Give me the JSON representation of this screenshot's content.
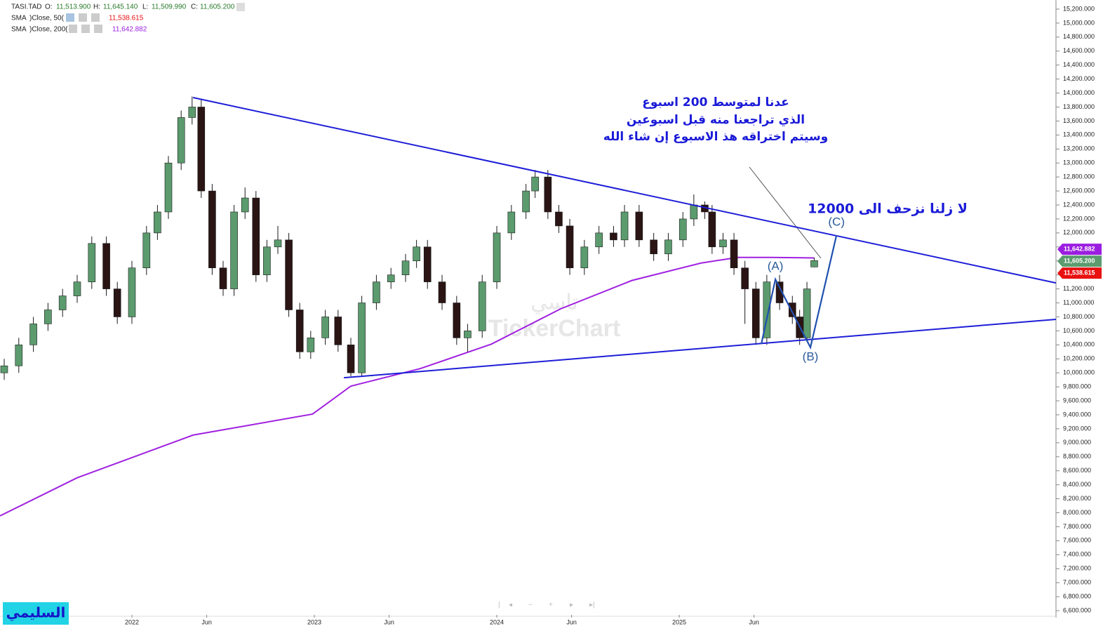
{
  "header": {
    "symbol": "TASI.TAD",
    "open_label": "O:",
    "open": "11,513.900",
    "high_label": "H:",
    "high": "11,645.140",
    "low_label": "L:",
    "low": "11,509.990",
    "close_label": "C:",
    "close": "11,605.200",
    "sma50_name": "SMA",
    "sma50_params": ")Close, 50(",
    "sma50_value": "11,538.615",
    "sma200_name": "SMA",
    "sma200_params": ")Close, 200(",
    "sma200_value": "11,642.882"
  },
  "annotations": {
    "note_line1": "عدنا لمتوسط 200 اسبوع",
    "note_line2": "الذي تراجعنا منه قبل اسبوعين",
    "note_line3": "وسيتم اختراقه هذ الاسبوع إن شاء الله",
    "target": "لا زلنا نزحف الى  12000",
    "watermark_ar": "تاسي",
    "watermark_en": "TickerChart",
    "author": "السليمي"
  },
  "chart_data": {
    "type": "candlestick",
    "xlim": [
      2021.277,
      2027.065
    ],
    "xticks": [
      {
        "value": 2022,
        "label": "2022"
      },
      {
        "value": 2022.41,
        "label": "Jun"
      },
      {
        "value": 2023,
        "label": "2023"
      },
      {
        "value": 2023.41,
        "label": "Jun"
      },
      {
        "value": 2024,
        "label": "2024"
      },
      {
        "value": 2024.41,
        "label": "Jun"
      },
      {
        "value": 2025,
        "label": "2025"
      },
      {
        "value": 2025.41,
        "label": "Jun"
      }
    ],
    "ylim": [
      6500,
      15330
    ],
    "yticks": [
      {
        "value": 6600,
        "label": "6,600.000"
      },
      {
        "value": 6800,
        "label": "6,800.000"
      },
      {
        "value": 7000,
        "label": "7,000.000"
      },
      {
        "value": 7200,
        "label": "7,200.000"
      },
      {
        "value": 7400,
        "label": "7,400.000"
      },
      {
        "value": 7600,
        "label": "7,600.000"
      },
      {
        "value": 7800,
        "label": "7,800.000"
      },
      {
        "value": 8000,
        "label": "8,000.000"
      },
      {
        "value": 8200,
        "label": "8,200.000"
      },
      {
        "value": 8400,
        "label": "8,400.000"
      },
      {
        "value": 8600,
        "label": "8,600.000"
      },
      {
        "value": 8800,
        "label": "8,800.000"
      },
      {
        "value": 9000,
        "label": "9,000.000"
      },
      {
        "value": 9200,
        "label": "9,200.000"
      },
      {
        "value": 9400,
        "label": "9,400.000"
      },
      {
        "value": 9600,
        "label": "9,600.000"
      },
      {
        "value": 9800,
        "label": "9,800.000"
      },
      {
        "value": 10000,
        "label": "10,000.000"
      },
      {
        "value": 10200,
        "label": "10,200.000"
      },
      {
        "value": 10400,
        "label": "10,400.000"
      },
      {
        "value": 10600,
        "label": "10,600.000"
      },
      {
        "value": 10800,
        "label": "10,800.000"
      },
      {
        "value": 11000,
        "label": "11,000.000"
      },
      {
        "value": 11200,
        "label": "11,200.000"
      },
      {
        "value": 11400,
        "label": "11,400.000"
      },
      {
        "value": 11600,
        "label": "11,600.000"
      },
      {
        "value": 11800,
        "label": "11,800.000"
      },
      {
        "value": 12000,
        "label": "12,000.000"
      },
      {
        "value": 12200,
        "label": "12,200.000"
      },
      {
        "value": 12400,
        "label": "12,400.000"
      },
      {
        "value": 12600,
        "label": "12,600.000"
      },
      {
        "value": 12800,
        "label": "12,800.000"
      },
      {
        "value": 13000,
        "label": "13,000.000"
      },
      {
        "value": 13200,
        "label": "13,200.000"
      },
      {
        "value": 13400,
        "label": "13,400.000"
      },
      {
        "value": 13600,
        "label": "13,600.000"
      },
      {
        "value": 13800,
        "label": "13,800.000"
      },
      {
        "value": 14000,
        "label": "14,000.000"
      },
      {
        "value": 14200,
        "label": "14,200.000"
      },
      {
        "value": 14400,
        "label": "14,400.000"
      },
      {
        "value": 14600,
        "label": "14,600.000"
      },
      {
        "value": 14800,
        "label": "14,800.000"
      },
      {
        "value": 15000,
        "label": "15,000.000"
      },
      {
        "value": 15200,
        "label": "15,200.000"
      }
    ],
    "up_color": "#5b9b6e",
    "down_color": "#2a1414",
    "x": [
      2021.3,
      2021.38,
      2021.46,
      2021.54,
      2021.62,
      2021.7,
      2021.78,
      2021.86,
      2021.92,
      2022.0,
      2022.08,
      2022.14,
      2022.2,
      2022.27,
      2022.33,
      2022.38,
      2022.44,
      2022.5,
      2022.56,
      2022.62,
      2022.68,
      2022.74,
      2022.8,
      2022.86,
      2022.92,
      2022.98,
      2023.06,
      2023.13,
      2023.2,
      2023.26,
      2023.34,
      2023.42,
      2023.5,
      2023.56,
      2023.62,
      2023.7,
      2023.78,
      2023.84,
      2023.92,
      2024.0,
      2024.08,
      2024.16,
      2024.21,
      2024.28,
      2024.34,
      2024.4,
      2024.48,
      2024.56,
      2024.64,
      2024.7,
      2024.78,
      2024.86,
      2024.94,
      2025.02,
      2025.08,
      2025.14,
      2025.18,
      2025.24,
      2025.3,
      2025.36,
      2025.42,
      2025.48,
      2025.55,
      2025.62,
      2025.66,
      2025.7,
      2025.74
    ],
    "open": [
      10000,
      10100,
      10400,
      10700,
      10900,
      11100,
      11300,
      11850,
      11200,
      10800,
      11500,
      12000,
      12300,
      13000,
      13650,
      13800,
      12600,
      11500,
      11200,
      12300,
      12500,
      11400,
      11800,
      11900,
      10900,
      10300,
      10500,
      10800,
      10400,
      10000,
      11000,
      11300,
      11400,
      11600,
      11800,
      11300,
      11000,
      10500,
      10600,
      11300,
      12000,
      12300,
      12600,
      12800,
      12300,
      12100,
      11500,
      11800,
      12000,
      11900,
      12300,
      11900,
      11700,
      11900,
      12200,
      12400,
      12300,
      11800,
      11900,
      11500,
      11200,
      10500,
      11300,
      11000,
      10800,
      10500,
      11513.9
    ],
    "high": [
      10200,
      10500,
      10800,
      11000,
      11200,
      11400,
      11950,
      11950,
      11300,
      11600,
      12100,
      12400,
      13100,
      13750,
      13950,
      13900,
      12700,
      11600,
      12400,
      12650,
      12600,
      11900,
      12100,
      12000,
      11000,
      10600,
      10900,
      10900,
      10500,
      11100,
      11400,
      11500,
      11700,
      11900,
      11900,
      11400,
      11100,
      10700,
      11400,
      12100,
      12400,
      12700,
      12900,
      12900,
      12400,
      12200,
      11900,
      12100,
      12100,
      12400,
      12400,
      12000,
      12000,
      12300,
      12550,
      12450,
      12400,
      12000,
      12000,
      11600,
      11300,
      11400,
      11400,
      11100,
      10900,
      11300,
      11645.14
    ],
    "low": [
      9900,
      10000,
      10300,
      10600,
      10800,
      11000,
      11200,
      11100,
      10700,
      10700,
      11400,
      11900,
      12200,
      12900,
      13550,
      12500,
      11400,
      11100,
      11100,
      12200,
      11300,
      11300,
      11700,
      10800,
      10200,
      10200,
      10400,
      10300,
      9950,
      9950,
      10900,
      11200,
      11300,
      11500,
      11200,
      10900,
      10400,
      10300,
      10500,
      11200,
      11900,
      12200,
      12500,
      12200,
      12000,
      11400,
      11400,
      11700,
      11800,
      11800,
      11800,
      11600,
      11600,
      11800,
      12100,
      12200,
      11700,
      11700,
      11400,
      10700,
      10400,
      10400,
      10900,
      10700,
      10400,
      10450,
      11509.99
    ],
    "close": [
      10100,
      10400,
      10700,
      10900,
      11100,
      11300,
      11850,
      11200,
      10800,
      11500,
      12000,
      12300,
      13000,
      13650,
      13800,
      12600,
      11500,
      11200,
      12300,
      12500,
      11400,
      11800,
      11900,
      10900,
      10300,
      10500,
      10800,
      10400,
      10000,
      11000,
      11300,
      11400,
      11600,
      11800,
      11300,
      11000,
      10500,
      10600,
      11300,
      12000,
      12300,
      12600,
      12800,
      12300,
      12100,
      11500,
      11800,
      12000,
      11900,
      12300,
      11900,
      11700,
      11900,
      12200,
      12400,
      12300,
      11800,
      11900,
      11500,
      11200,
      10500,
      11300,
      11000,
      10800,
      10500,
      11200,
      11605.2
    ],
    "sma200": {
      "name": "SMA 200",
      "color": "#a020e0",
      "x": [
        2021.277,
        2021.7,
        2022.335,
        2022.99,
        2023.2,
        2023.58,
        2023.97,
        2024.35,
        2024.74,
        2025.12,
        2025.32,
        2025.5,
        2025.74
      ],
      "values": [
        7955,
        8500,
        9110,
        9410,
        9810,
        10060,
        10410,
        10915,
        11320,
        11570,
        11650,
        11650,
        11642.882
      ]
    },
    "trendlines": [
      {
        "x": [
          2022.335,
          2027.065
        ],
        "values": [
          13935,
          11285
        ]
      },
      {
        "x": [
          2023.162,
          2027.065
        ],
        "values": [
          9930,
          10765
        ]
      }
    ],
    "wave": {
      "x": [
        2025.45,
        2025.527,
        2025.719,
        2025.862
      ],
      "values": [
        10413,
        11337,
        10363,
        11969
      ],
      "labels": [
        "(A)",
        "(B)",
        "(C)"
      ]
    },
    "price_tags": [
      {
        "value": 11642.882,
        "label": "11,642.882",
        "color": "#9b1ee0"
      },
      {
        "value": 11605.2,
        "label": "11,605.200",
        "color": "#5b9b6e"
      },
      {
        "value": 11538.615,
        "label": "11,538.615",
        "color": "#e81010"
      }
    ]
  }
}
